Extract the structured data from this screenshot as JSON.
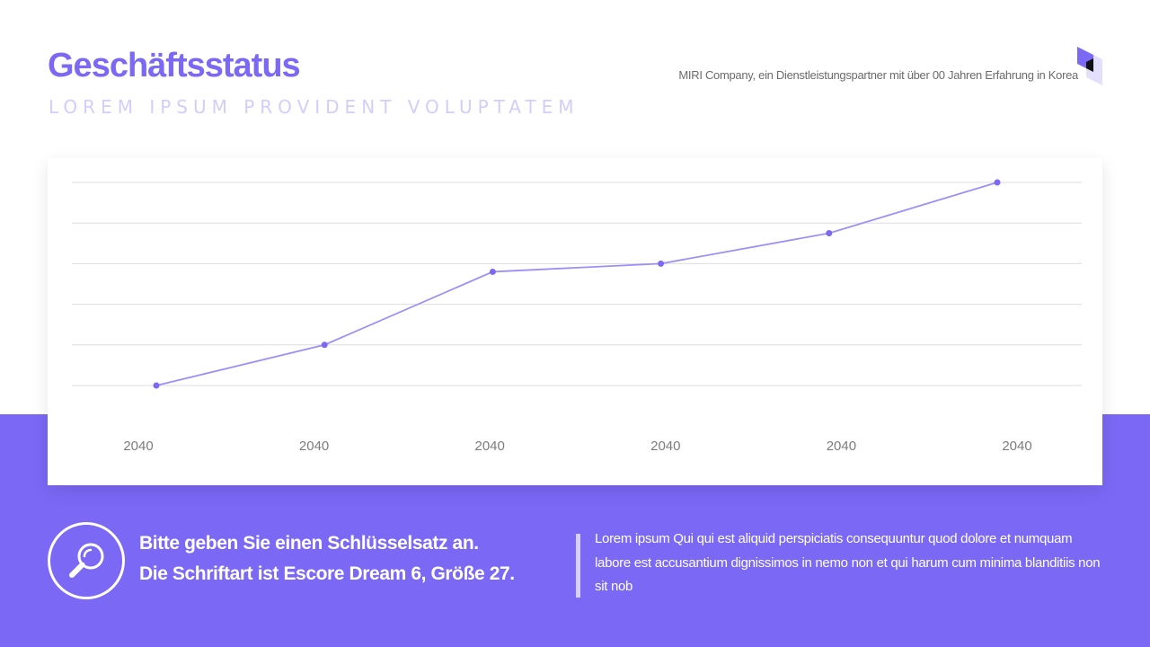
{
  "header": {
    "title": "Geschäftsstatus",
    "subtitle": "LOREM IPSUM PROVIDENT VOLUPTATEM",
    "company": "MIRI Company, ein Dienstleistungspartner mit über 00 Jahren Erfahrung in Korea"
  },
  "colors": {
    "accent": "#7b68f5",
    "subtitle": "#d4cdfb",
    "line": "#9d8ff7",
    "gridline": "#dddddd"
  },
  "chart_data": {
    "type": "line",
    "categories": [
      "2040",
      "2040",
      "2040",
      "2040",
      "2040",
      "2040"
    ],
    "series": [
      {
        "values": [
          0,
          1,
          2.8,
          3,
          3.75,
          5
        ]
      }
    ],
    "ylim": [
      0,
      5
    ],
    "grid": true,
    "legend": "none"
  },
  "footer": {
    "key_line_1": "Bitte geben Sie einen Schlüsselsatz an.",
    "key_line_2": "Die Schriftart ist Escore Dream 6, Größe 27.",
    "description": "Lorem ipsum Qui qui est aliquid perspiciatis consequuntur quod dolore et numquam labore est accusantium dignissimos in nemo non et qui harum cum minima blanditiis non sit nob",
    "icon": "search-icon"
  }
}
